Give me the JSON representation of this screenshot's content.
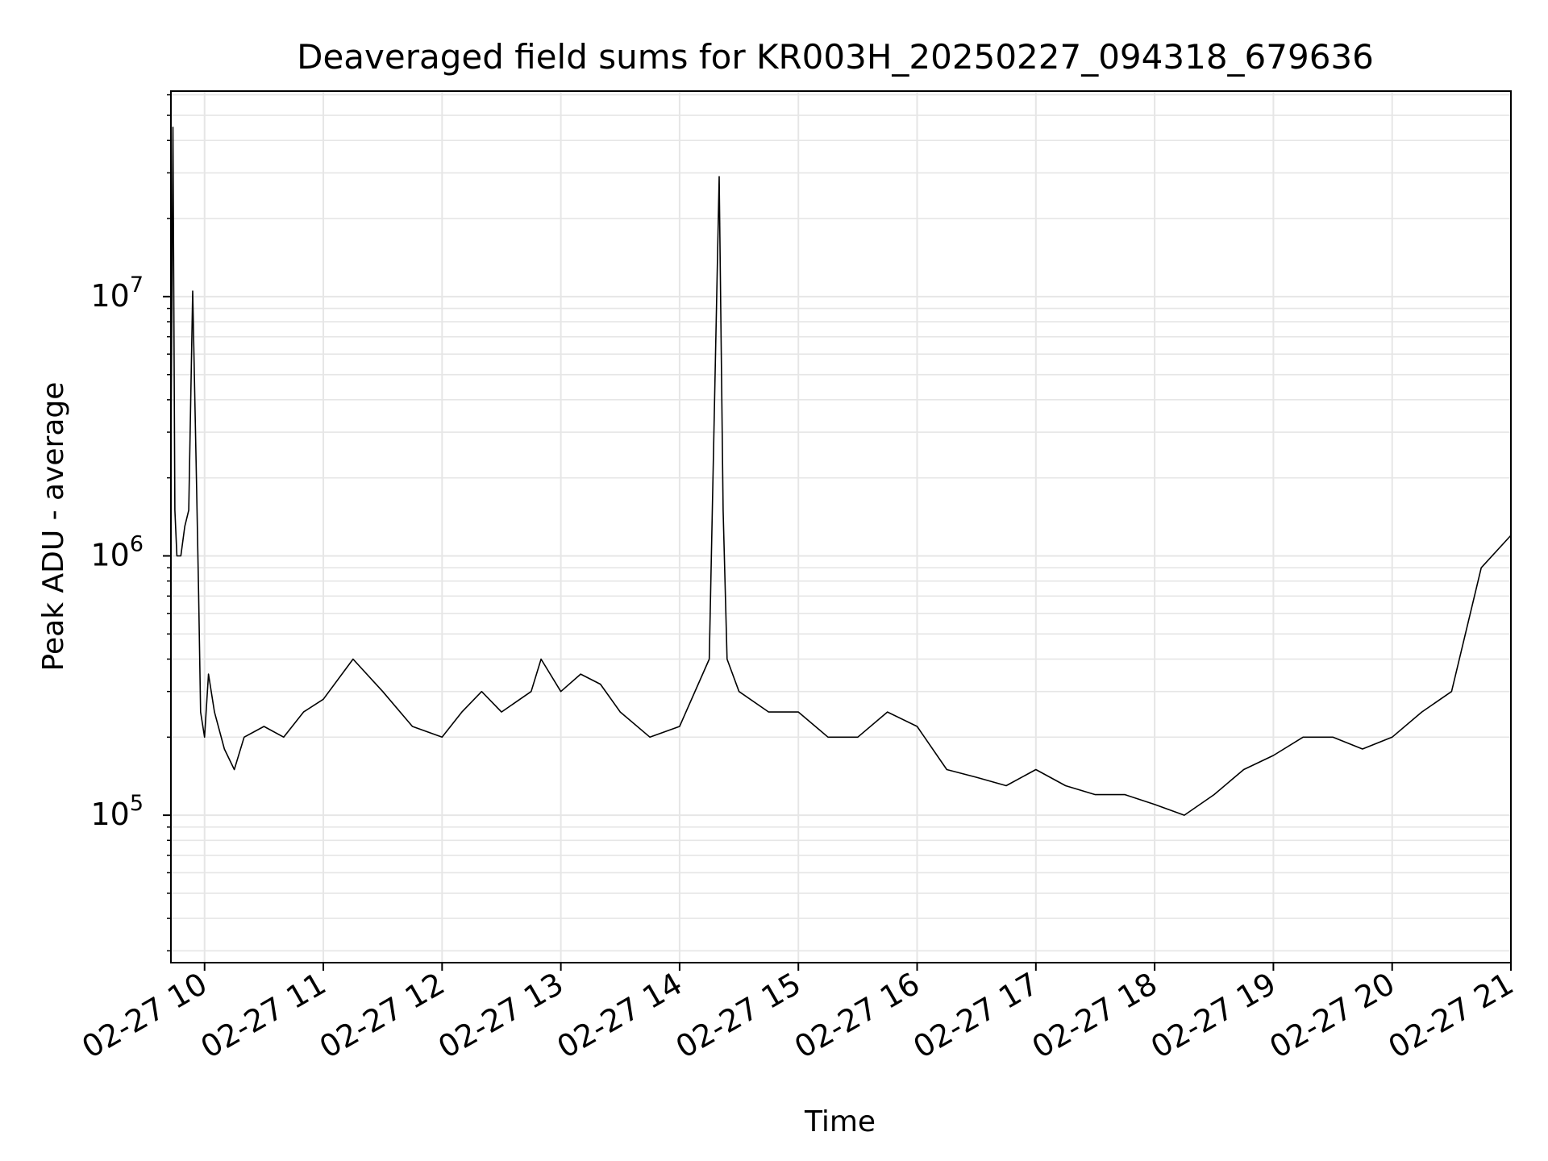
{
  "chart_data": {
    "type": "line",
    "title": "Deaveraged field sums for KR003H_20250227_094318_679636",
    "xlabel": "Time",
    "ylabel": "Peak ADU - average",
    "yscale": "log",
    "grid": true,
    "line_color": "#000000",
    "grid_color": "#e6e6e6",
    "x_tick_labels": [
      "02-27 10",
      "02-27 11",
      "02-27 12",
      "02-27 13",
      "02-27 14",
      "02-27 15",
      "02-27 16",
      "02-27 17",
      "02-27 18",
      "02-27 19",
      "02-27 20",
      "02-27 21"
    ],
    "x_tick_dates": [
      "2025-02-27 10:00",
      "2025-02-27 11:00",
      "2025-02-27 12:00",
      "2025-02-27 13:00",
      "2025-02-27 14:00",
      "2025-02-27 15:00",
      "2025-02-27 16:00",
      "2025-02-27 17:00",
      "2025-02-27 18:00",
      "2025-02-27 19:00",
      "2025-02-27 20:00",
      "2025-02-27 21:00"
    ],
    "y_tick_labels": [
      {
        "base": "10",
        "exp": "5",
        "value": 100000
      },
      {
        "base": "10",
        "exp": "6",
        "value": 1000000
      },
      {
        "base": "10",
        "exp": "7",
        "value": 10000000
      }
    ],
    "xlim": [
      "2025-02-27 09:43",
      "2025-02-27 21:00"
    ],
    "ylim": [
      27000,
      62000000
    ],
    "series": [
      {
        "x": [
          "2025-02-27 09:43",
          "2025-02-27 09:44",
          "2025-02-27 09:45",
          "2025-02-27 09:46",
          "2025-02-27 09:48",
          "2025-02-27 09:50",
          "2025-02-27 09:52",
          "2025-02-27 09:54",
          "2025-02-27 09:56",
          "2025-02-27 09:57",
          "2025-02-27 09:58",
          "2025-02-27 10:00",
          "2025-02-27 10:02",
          "2025-02-27 10:05",
          "2025-02-27 10:10",
          "2025-02-27 10:15",
          "2025-02-27 10:20",
          "2025-02-27 10:30",
          "2025-02-27 10:40",
          "2025-02-27 10:50",
          "2025-02-27 11:00",
          "2025-02-27 11:15",
          "2025-02-27 11:30",
          "2025-02-27 11:45",
          "2025-02-27 12:00",
          "2025-02-27 12:10",
          "2025-02-27 12:20",
          "2025-02-27 12:30",
          "2025-02-27 12:45",
          "2025-02-27 12:50",
          "2025-02-27 13:00",
          "2025-02-27 13:10",
          "2025-02-27 13:20",
          "2025-02-27 13:30",
          "2025-02-27 13:45",
          "2025-02-27 14:00",
          "2025-02-27 14:15",
          "2025-02-27 14:20",
          "2025-02-27 14:22",
          "2025-02-27 14:24",
          "2025-02-27 14:30",
          "2025-02-27 14:45",
          "2025-02-27 15:00",
          "2025-02-27 15:15",
          "2025-02-27 15:30",
          "2025-02-27 15:45",
          "2025-02-27 16:00",
          "2025-02-27 16:15",
          "2025-02-27 16:30",
          "2025-02-27 16:45",
          "2025-02-27 17:00",
          "2025-02-27 17:15",
          "2025-02-27 17:30",
          "2025-02-27 17:45",
          "2025-02-27 18:00",
          "2025-02-27 18:15",
          "2025-02-27 18:30",
          "2025-02-27 18:45",
          "2025-02-27 19:00",
          "2025-02-27 19:15",
          "2025-02-27 19:30",
          "2025-02-27 19:45",
          "2025-02-27 20:00",
          "2025-02-27 20:15",
          "2025-02-27 20:30",
          "2025-02-27 20:45",
          "2025-02-27 21:00"
        ],
        "y": [
          2500000,
          45000000,
          1500000,
          1000000,
          1000000,
          1300000,
          1500000,
          10500000,
          1800000,
          700000,
          250000,
          200000,
          350000,
          250000,
          180000,
          150000,
          200000,
          220000,
          200000,
          250000,
          280000,
          400000,
          300000,
          220000,
          200000,
          250000,
          300000,
          250000,
          300000,
          400000,
          300000,
          350000,
          320000,
          250000,
          200000,
          220000,
          400000,
          29000000,
          1500000,
          400000,
          300000,
          250000,
          250000,
          200000,
          200000,
          250000,
          220000,
          150000,
          140000,
          130000,
          150000,
          130000,
          120000,
          120000,
          110000,
          100000,
          120000,
          150000,
          170000,
          200000,
          200000,
          180000,
          200000,
          250000,
          300000,
          900000,
          1200000
        ]
      }
    ]
  }
}
